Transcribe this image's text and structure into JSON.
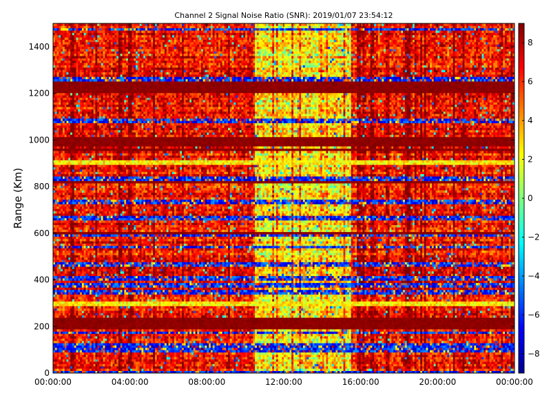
{
  "chart_data": {
    "type": "heatmap",
    "title": "Channel 2 Signal Noise Ratio (SNR): 2019/01/07 23:54:12",
    "xlabel": "",
    "ylabel": "Range (Km)",
    "x_ticks": [
      "00:00:00",
      "04:00:00",
      "08:00:00",
      "12:00:00",
      "16:00:00",
      "20:00:00",
      "00:00:00"
    ],
    "x_range_hours": [
      0,
      24
    ],
    "ylim": [
      0,
      1500
    ],
    "y_ticks": [
      0,
      200,
      400,
      600,
      800,
      1000,
      1200,
      1400
    ],
    "colormap": "jet",
    "colorbar_range": [
      -9,
      9
    ],
    "colorbar_ticks": [
      8,
      6,
      4,
      2,
      0,
      -2,
      -4,
      -6,
      -8
    ],
    "grid": false,
    "num_time_bins": 240,
    "num_range_bins": 151,
    "low_snr_ranges_km": [
      5,
      95,
      110,
      125,
      175,
      350,
      375,
      405,
      465,
      540,
      590,
      665,
      735,
      835,
      1085,
      1260,
      1475
    ],
    "high_snr_ranges_km": [
      200,
      215,
      230,
      600,
      820,
      960,
      980,
      995,
      1010,
      1210,
      1225,
      1240
    ],
    "cool_snr_ranges_km": [
      905,
      300,
      460
    ],
    "day_time_window_hours": [
      10.5,
      15.5
    ]
  }
}
